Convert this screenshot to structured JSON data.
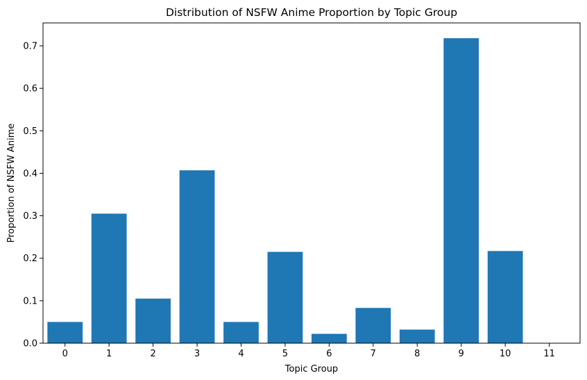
{
  "chart_data": {
    "type": "bar",
    "title": "Distribution of NSFW Anime Proportion by Topic Group",
    "xlabel": "Topic Group",
    "ylabel": "Proportion of NSFW Anime",
    "categories": [
      "0",
      "1",
      "2",
      "3",
      "4",
      "5",
      "6",
      "7",
      "8",
      "9",
      "10",
      "11"
    ],
    "values": [
      0.05,
      0.305,
      0.105,
      0.407,
      0.05,
      0.215,
      0.022,
      0.083,
      0.032,
      0.718,
      0.217,
      0.0
    ],
    "ylim": [
      0,
      0.754
    ],
    "yticks": [
      0.0,
      0.1,
      0.2,
      0.3,
      0.4,
      0.5,
      0.6,
      0.7
    ],
    "ytick_labels": [
      "0.0",
      "0.1",
      "0.2",
      "0.3",
      "0.4",
      "0.5",
      "0.6",
      "0.7"
    ],
    "grid": false,
    "bar_color": "#1f77b4"
  }
}
